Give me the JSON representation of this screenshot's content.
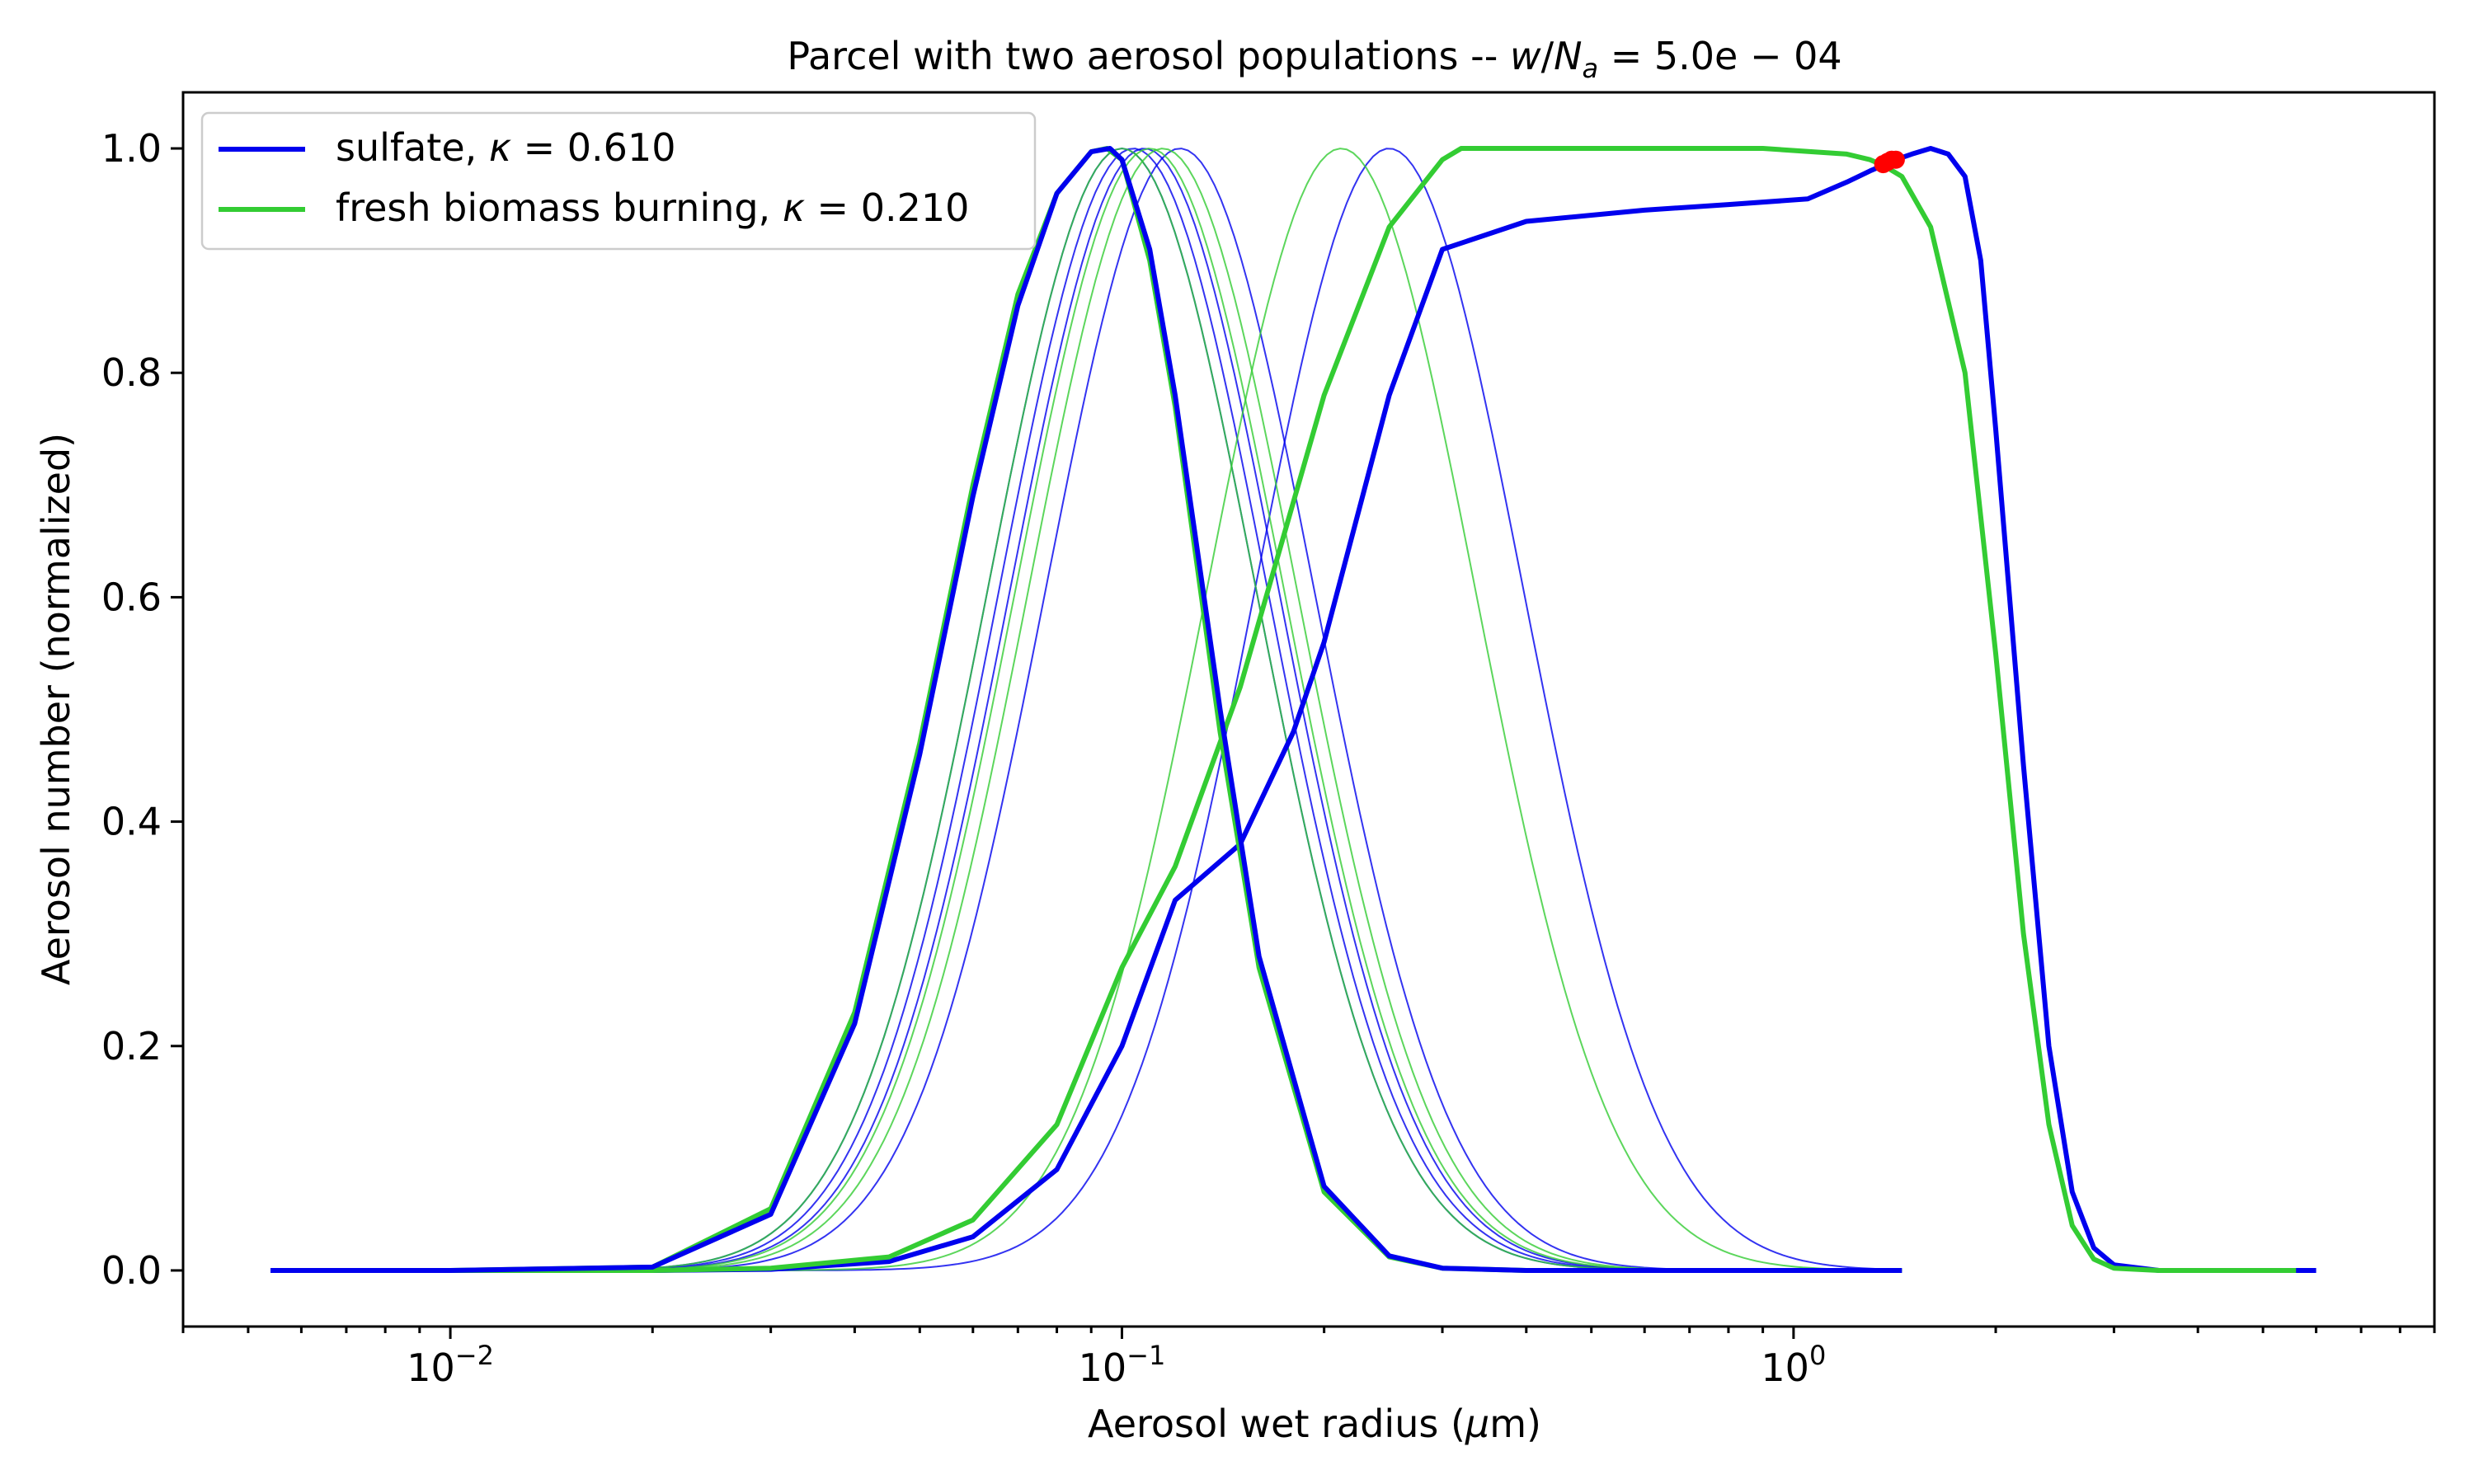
{
  "chart_data": {
    "type": "line",
    "title": "Parcel with two aerosol populations -- w/N_a = 5.0e-04",
    "title_parts": {
      "prefix": "Parcel with two aerosol populations -- ",
      "w": "w",
      "slash": "/",
      "N": "N",
      "sub": "a",
      "rest": " = 5.0e − 04"
    },
    "xlabel_parts": {
      "prefix": "Aerosol wet radius (",
      "mu": "μ",
      "suffix": "m)"
    },
    "ylabel": "Aerosol number (normalized)",
    "xscale": "log",
    "xlim": [
      0.004,
      9.0
    ],
    "ylim": [
      -0.05,
      1.05
    ],
    "xticks": [
      {
        "value": 0.01,
        "base": "10",
        "exp": "−2"
      },
      {
        "value": 0.1,
        "base": "10",
        "exp": "−1"
      },
      {
        "value": 1,
        "base": "10",
        "exp": "0"
      }
    ],
    "yticks": [
      "0.0",
      "0.2",
      "0.4",
      "0.6",
      "0.8",
      "1.0"
    ],
    "grid": false,
    "legend": {
      "position": "top-left",
      "entries": [
        {
          "label_prefix": "sulfate, ",
          "symbol": "κ",
          "label_value": " = 0.610",
          "color": "#0000ee"
        },
        {
          "label_prefix": "fresh biomass burning, ",
          "symbol": "κ",
          "label_value": " = 0.210",
          "color": "#33cc33"
        }
      ]
    },
    "colors": {
      "sulfate": "#0000ee",
      "biomass": "#33cc33",
      "marker": "#ff0000"
    },
    "series": [
      {
        "name": "sulfate, κ = 0.610",
        "color": "#0000ee",
        "x": [
          0.0054,
          0.01,
          0.02,
          0.03,
          0.045,
          0.06,
          0.08,
          0.1,
          0.12,
          0.15,
          0.18,
          0.2,
          0.25,
          0.3,
          0.4,
          0.6,
          0.8,
          1.05,
          1.2,
          1.3,
          1.36,
          1.42,
          1.5,
          1.6,
          1.7,
          1.8,
          1.9,
          2.0,
          2.2,
          2.4,
          2.6,
          2.8,
          3.0,
          3.5,
          4.0,
          5.0,
          6.0
        ],
        "y": [
          0.0,
          0.0,
          0.0,
          0.001,
          0.008,
          0.03,
          0.09,
          0.2,
          0.33,
          0.38,
          0.48,
          0.56,
          0.78,
          0.91,
          0.935,
          0.945,
          0.95,
          0.955,
          0.97,
          0.98,
          0.985,
          0.99,
          0.995,
          1.0,
          0.995,
          0.975,
          0.9,
          0.75,
          0.45,
          0.2,
          0.07,
          0.02,
          0.005,
          0.0,
          0.0,
          0.0,
          0.0
        ]
      },
      {
        "name": "fresh biomass burning, κ = 0.210",
        "color": "#33cc33",
        "x": [
          0.0063,
          0.01,
          0.02,
          0.03,
          0.045,
          0.06,
          0.08,
          0.1,
          0.12,
          0.15,
          0.2,
          0.25,
          0.3,
          0.32,
          0.5,
          0.9,
          1.2,
          1.3,
          1.36,
          1.45,
          1.6,
          1.8,
          2.0,
          2.2,
          2.4,
          2.6,
          2.8,
          3.0,
          3.5,
          4.0,
          5.0,
          5.6
        ],
        "y": [
          0.0,
          0.0,
          0.0,
          0.002,
          0.012,
          0.045,
          0.13,
          0.27,
          0.36,
          0.52,
          0.78,
          0.93,
          0.99,
          1.0,
          1.0,
          1.0,
          0.995,
          0.99,
          0.985,
          0.975,
          0.93,
          0.8,
          0.55,
          0.3,
          0.13,
          0.04,
          0.01,
          0.002,
          0.0,
          0.0,
          0.0,
          0.0
        ]
      },
      {
        "name": "",
        "color": "#33cc33",
        "x": [
          0.0063,
          0.01,
          0.02,
          0.03,
          0.04,
          0.05,
          0.06,
          0.07,
          0.08,
          0.09,
          0.095,
          0.1,
          0.11,
          0.12,
          0.14,
          0.16,
          0.2,
          0.25,
          0.3,
          0.4,
          0.5,
          0.8,
          1.0,
          1.45
        ],
        "y": [
          0.0,
          0.0,
          0.003,
          0.055,
          0.23,
          0.47,
          0.7,
          0.87,
          0.96,
          0.997,
          1.0,
          0.99,
          0.9,
          0.77,
          0.48,
          0.27,
          0.07,
          0.012,
          0.002,
          0.0,
          0.0,
          0.0,
          0.0,
          0.0
        ]
      },
      {
        "name": "",
        "color": "#0000ee",
        "x": [
          0.0054,
          0.01,
          0.02,
          0.03,
          0.04,
          0.05,
          0.06,
          0.07,
          0.08,
          0.09,
          0.096,
          0.1,
          0.11,
          0.12,
          0.14,
          0.16,
          0.2,
          0.25,
          0.3,
          0.4,
          0.5,
          0.8,
          1.0,
          1.45
        ],
        "y": [
          0.0,
          0.0,
          0.003,
          0.05,
          0.22,
          0.46,
          0.69,
          0.86,
          0.96,
          0.997,
          1.0,
          0.99,
          0.91,
          0.78,
          0.5,
          0.28,
          0.075,
          0.013,
          0.002,
          0.0,
          0.0,
          0.0,
          0.0,
          0.0
        ]
      }
    ],
    "thin_gaussians": [
      {
        "color": "#0000ee",
        "peak": 0.1,
        "width": 0.2
      },
      {
        "color": "#0000ee",
        "peak": 0.104,
        "width": 0.2
      },
      {
        "color": "#0000ee",
        "peak": 0.108,
        "width": 0.2
      },
      {
        "color": "#0000ee",
        "peak": 0.122,
        "width": 0.2
      },
      {
        "color": "#0000ee",
        "peak": 0.25,
        "width": 0.2
      },
      {
        "color": "#33cc33",
        "peak": 0.1,
        "width": 0.2
      },
      {
        "color": "#33cc33",
        "peak": 0.11,
        "width": 0.2
      },
      {
        "color": "#33cc33",
        "peak": 0.115,
        "width": 0.2
      },
      {
        "color": "#33cc33",
        "peak": 0.212,
        "width": 0.2
      }
    ],
    "markers": [
      {
        "x": 1.36,
        "y": 0.986
      },
      {
        "x": 1.38,
        "y": 0.988
      },
      {
        "x": 1.4,
        "y": 0.99
      },
      {
        "x": 1.42,
        "y": 0.99
      }
    ]
  }
}
